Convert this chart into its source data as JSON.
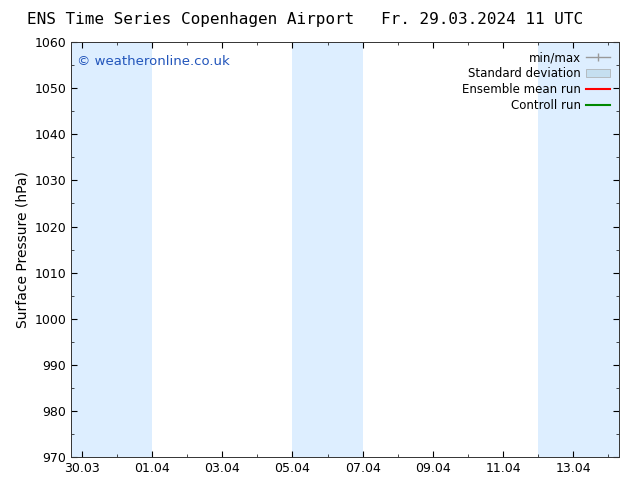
{
  "title_left": "ENS Time Series Copenhagen Airport",
  "title_right": "Fr. 29.03.2024 11 UTC",
  "ylabel": "Surface Pressure (hPa)",
  "ylim": [
    970,
    1060
  ],
  "yticks": [
    970,
    980,
    990,
    1000,
    1010,
    1020,
    1030,
    1040,
    1050,
    1060
  ],
  "x_tick_labels": [
    "30.03",
    "01.04",
    "03.04",
    "05.04",
    "07.04",
    "09.04",
    "11.04",
    "13.04"
  ],
  "x_tick_positions": [
    0,
    2,
    4,
    6,
    8,
    10,
    12,
    14
  ],
  "x_lim": [
    -0.3,
    15.3
  ],
  "shaded_bands": [
    {
      "x_start": -0.3,
      "x_end": 2.0,
      "color": "#ddeeff"
    },
    {
      "x_start": 6.0,
      "x_end": 8.0,
      "color": "#ddeeff"
    },
    {
      "x_start": 13.0,
      "x_end": 15.3,
      "color": "#ddeeff"
    }
  ],
  "watermark_text": "© weatheronline.co.uk",
  "watermark_color": "#2255bb",
  "bg_color": "#ffffff",
  "legend_items": [
    {
      "label": "min/max",
      "color": "#999999",
      "style": "errorbar"
    },
    {
      "label": "Standard deviation",
      "color": "#c5dff0",
      "style": "rect"
    },
    {
      "label": "Ensemble mean run",
      "color": "#ff0000",
      "style": "line"
    },
    {
      "label": "Controll run",
      "color": "#008800",
      "style": "line"
    }
  ],
  "title_fontsize": 11.5,
  "axis_label_fontsize": 10,
  "tick_fontsize": 9,
  "legend_fontsize": 8.5
}
